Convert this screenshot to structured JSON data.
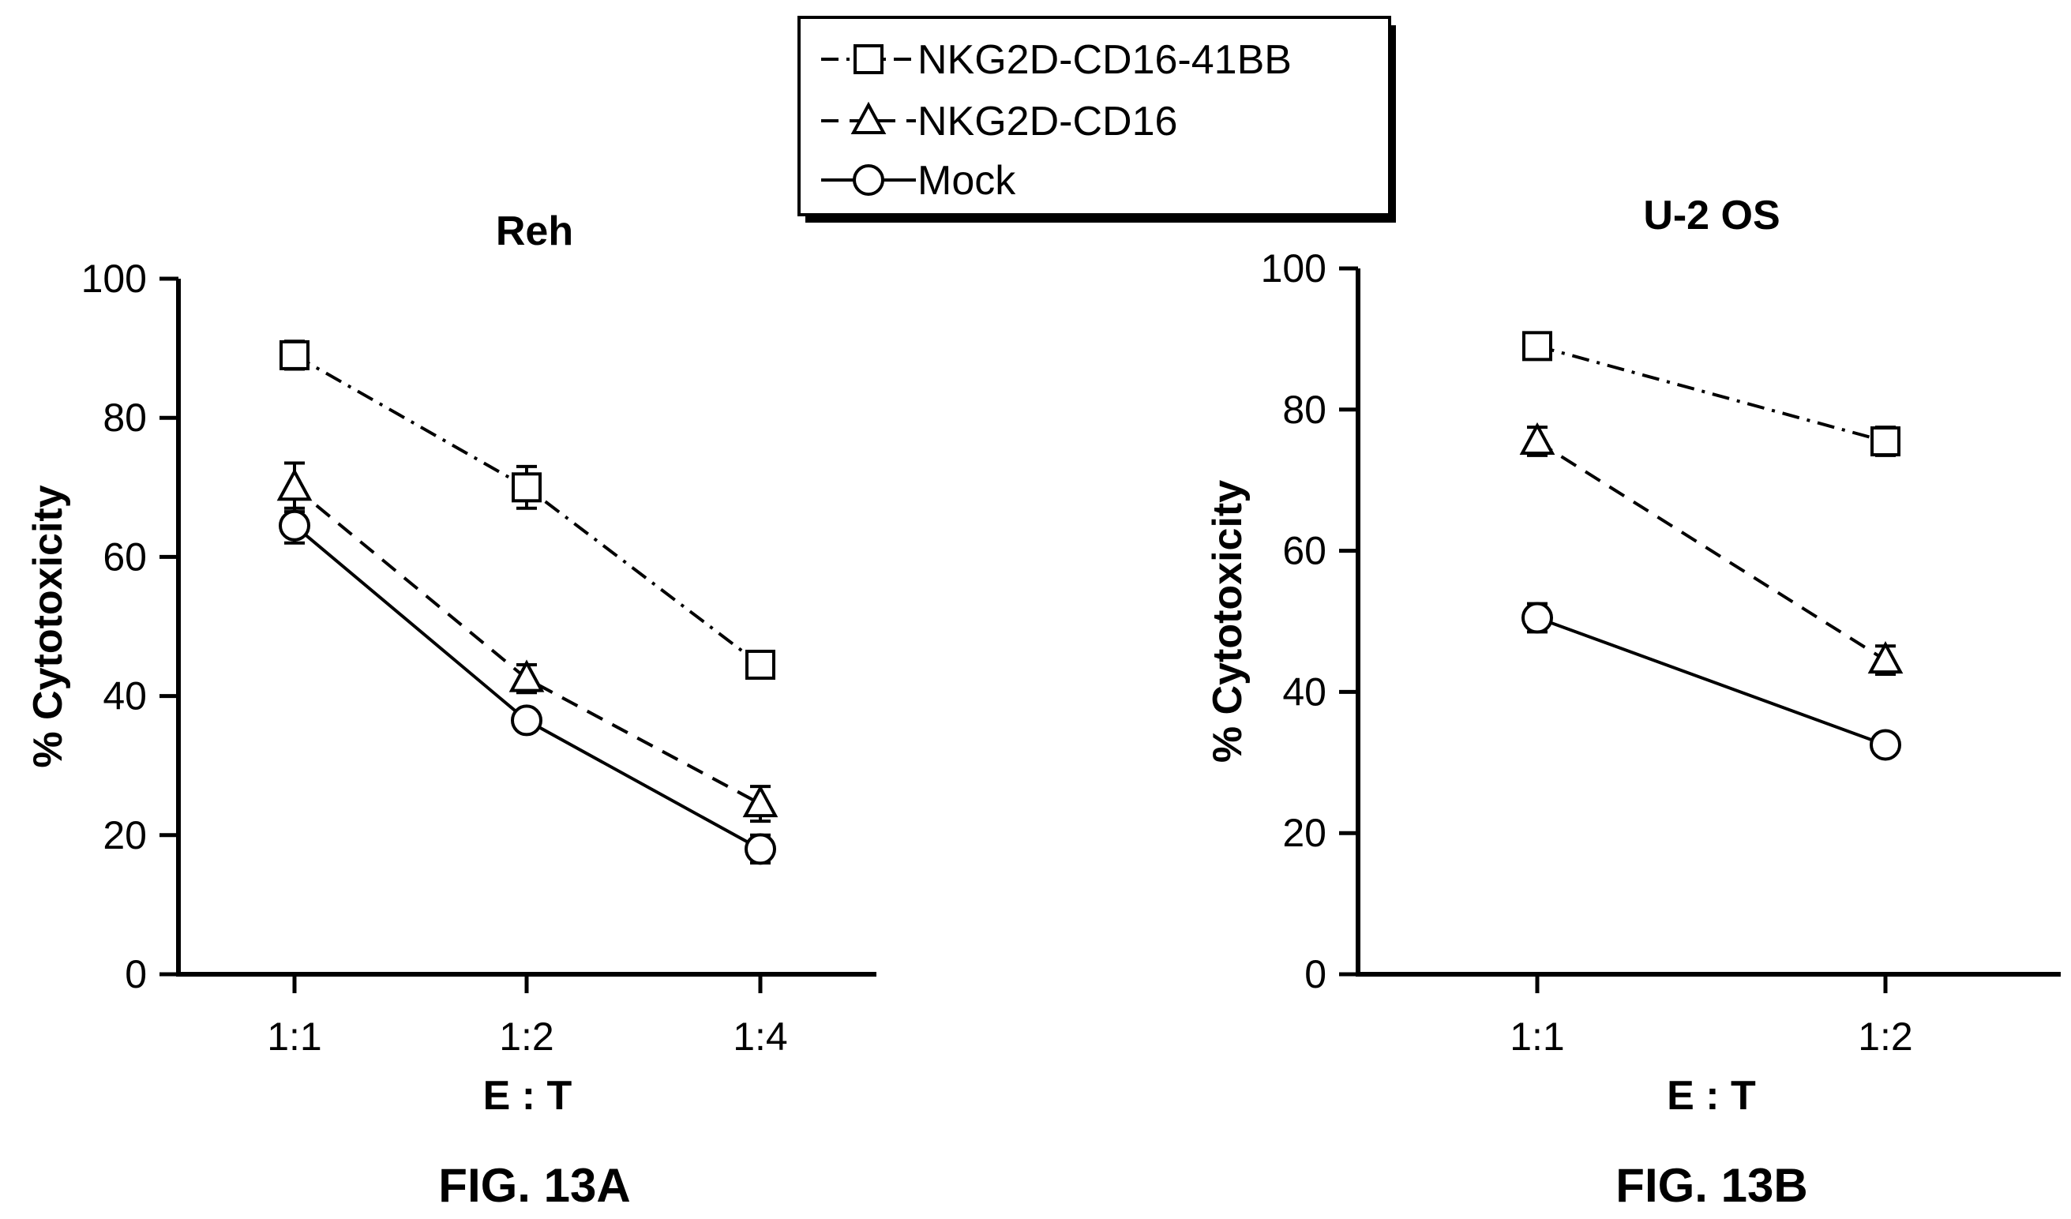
{
  "legend": {
    "entries": [
      {
        "label": "NKG2D-CD16-41BB",
        "marker": "square",
        "line": "dash-dot"
      },
      {
        "label": "NKG2D-CD16",
        "marker": "triangle",
        "line": "dashed"
      },
      {
        "label": "Mock",
        "marker": "circle",
        "line": "solid"
      }
    ]
  },
  "chart_data": [
    {
      "type": "line",
      "title": "Reh",
      "figure_label": "FIG. 13A",
      "xlabel": "E : T",
      "ylabel": "% Cytotoxicity",
      "categories": [
        "1:1",
        "1:2",
        "1:4"
      ],
      "ylim": [
        0,
        100
      ],
      "yticks": [
        0,
        20,
        40,
        60,
        80,
        100
      ],
      "grid": false,
      "series": [
        {
          "name": "NKG2D-CD16-41BB",
          "marker": "square",
          "line": "dash-dot",
          "values": [
            89,
            70,
            44.5
          ],
          "errors": [
            2,
            3,
            1.5
          ]
        },
        {
          "name": "NKG2D-CD16",
          "marker": "triangle",
          "line": "dashed",
          "values": [
            70,
            42.5,
            24.5
          ],
          "errors": [
            3.5,
            2,
            2.5
          ]
        },
        {
          "name": "Mock",
          "marker": "circle",
          "line": "solid",
          "values": [
            64.5,
            36.5,
            18
          ],
          "errors": [
            2.5,
            1,
            2
          ]
        }
      ]
    },
    {
      "type": "line",
      "title": "U-2 OS",
      "figure_label": "FIG. 13B",
      "xlabel": "E : T",
      "ylabel": "% Cytotoxicity",
      "categories": [
        "1:1",
        "1:2"
      ],
      "ylim": [
        0,
        100
      ],
      "yticks": [
        0,
        20,
        40,
        60,
        80,
        100
      ],
      "grid": false,
      "series": [
        {
          "name": "NKG2D-CD16-41BB",
          "marker": "square",
          "line": "dash-dot",
          "values": [
            89,
            75.5
          ],
          "errors": [
            1.5,
            2
          ]
        },
        {
          "name": "NKG2D-CD16",
          "marker": "triangle",
          "line": "dashed",
          "values": [
            75.5,
            44.5
          ],
          "errors": [
            2,
            2
          ]
        },
        {
          "name": "Mock",
          "marker": "circle",
          "line": "solid",
          "values": [
            50.5,
            32.5
          ],
          "errors": [
            2,
            1
          ]
        }
      ]
    }
  ]
}
